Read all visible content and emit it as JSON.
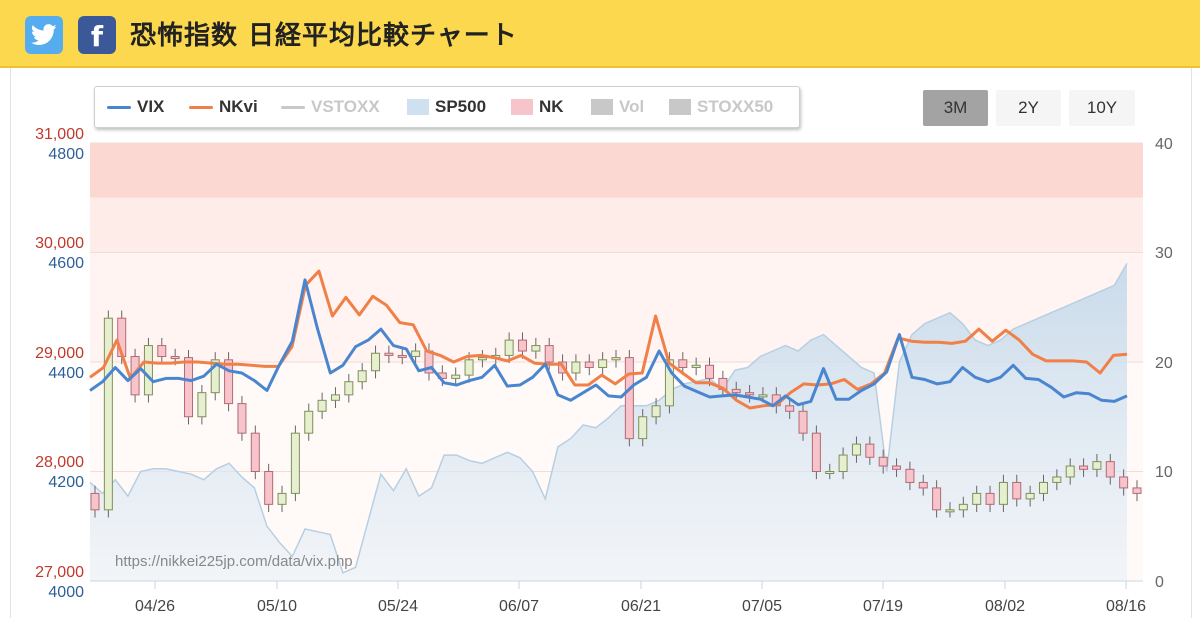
{
  "header": {
    "title": "恐怖指数 日経平均比較チャート",
    "twitter_icon": "twitter-icon",
    "facebook_icon": "facebook-icon",
    "facebook_glyph": "f"
  },
  "legend": [
    {
      "label": "VIX",
      "color": "#4a86cf",
      "symbol": "line",
      "active": true
    },
    {
      "label": "NKvi",
      "color": "#f07f48",
      "symbol": "line",
      "active": true
    },
    {
      "label": "VSTOXX",
      "color": "#c8c8c8",
      "symbol": "line",
      "active": false
    },
    {
      "label": "SP500",
      "color": "#cfe1f0",
      "symbol": "box",
      "active": true
    },
    {
      "label": "NK",
      "color": "#f7c4cb",
      "symbol": "box",
      "active": true
    },
    {
      "label": "Vol",
      "color": "#c8c8c8",
      "symbol": "box",
      "active": false
    },
    {
      "label": "STOXX50",
      "color": "#c8c8c8",
      "symbol": "box",
      "active": false
    }
  ],
  "range_buttons": [
    {
      "label": "3M",
      "active": true
    },
    {
      "label": "2Y",
      "active": false
    },
    {
      "label": "10Y",
      "active": false
    }
  ],
  "chart_data": {
    "type": "line",
    "x_ticks": [
      "04/26",
      "05/10",
      "05/24",
      "06/07",
      "06/21",
      "07/05",
      "07/19",
      "08/02",
      "08/16"
    ],
    "axes": {
      "left_nk": {
        "ticks": [
          "31,000",
          "30,000",
          "29,000",
          "28,000",
          "27,000"
        ],
        "range": [
          27000,
          31000
        ],
        "color": "#c0392b"
      },
      "left_sp": {
        "ticks": [
          "4800",
          "4600",
          "4400",
          "4200",
          "4000"
        ],
        "range": [
          4000,
          4800
        ],
        "color": "#2e5f9a"
      },
      "right_vix": {
        "ticks": [
          "40",
          "30",
          "20",
          "10",
          "0"
        ],
        "range": [
          0,
          40
        ]
      }
    },
    "bands": [
      {
        "from": 35,
        "to": 40,
        "color": "#fbd9d2"
      },
      {
        "from": 30,
        "to": 35,
        "color": "#fdece8"
      },
      {
        "from": 20,
        "to": 30,
        "color": "#fff4f1"
      },
      {
        "from": 0,
        "to": 20,
        "color": "#fffaf8"
      }
    ],
    "series": [
      {
        "name": "VIX",
        "color": "#4a86cf",
        "values": [
          17.4,
          18.2,
          19.5,
          18.3,
          19.4,
          18.2,
          18.5,
          18.5,
          18.3,
          18.7,
          19.8,
          19.2,
          19.0,
          18.3,
          17.4,
          19.8,
          21.9,
          27.5,
          23.0,
          19.0,
          19.7,
          21.4,
          22.0,
          23.0,
          21.5,
          21.2,
          19.2,
          19.5,
          18.1,
          17.9,
          18.3,
          18.6,
          19.7,
          17.8,
          17.9,
          18.6,
          19.8,
          17.0,
          16.5,
          17.2,
          17.9,
          16.9,
          16.8,
          17.9,
          18.6,
          21.0,
          19.0,
          17.8,
          17.3,
          16.8,
          16.9,
          17.0,
          16.8,
          16.6,
          16.0,
          16.9,
          16.1,
          16.4,
          19.4,
          16.6,
          16.6,
          17.4,
          18.0,
          19.1,
          22.5,
          18.6,
          18.4,
          18.0,
          18.2,
          19.5,
          18.6,
          18.2,
          18.6,
          19.7,
          18.5,
          18.4,
          17.7,
          16.8,
          17.2,
          17.1,
          16.5,
          16.4,
          16.9
        ]
      },
      {
        "name": "NKvi",
        "color": "#f07f48",
        "values": [
          18.6,
          19.5,
          22.0,
          18.5,
          20.0,
          19.9,
          19.9,
          20.0,
          20.0,
          19.9,
          19.8,
          19.8,
          19.7,
          19.6,
          19.6,
          21.4,
          27.0,
          28.3,
          24.2,
          25.9,
          24.3,
          26.0,
          25.2,
          23.6,
          23.4,
          21.0,
          20.6,
          20.0,
          20.5,
          20.6,
          20.4,
          20.1,
          20.6,
          19.9,
          19.8,
          19.8,
          17.9,
          17.9,
          18.8,
          18.0,
          18.9,
          19.0,
          24.2,
          19.9,
          19.0,
          18.1,
          18.1,
          17.6,
          16.5,
          15.8,
          16.0,
          16.1,
          17.2,
          18.0,
          17.9,
          18.0,
          18.4,
          17.5,
          18.0,
          19.0,
          22.2,
          21.9,
          21.8,
          21.8,
          21.7,
          21.9,
          23.0,
          21.9,
          22.9,
          22.0,
          20.7,
          20.1,
          20.1,
          20.1,
          20.0,
          19.0,
          20.6,
          20.7
        ]
      },
      {
        "name": "SP500",
        "color": "#cfe1f0",
        "values": [
          4180,
          4160,
          4185,
          4155,
          4200,
          4205,
          4205,
          4200,
          4195,
          4185,
          4205,
          4215,
          4190,
          4170,
          4100,
          4070,
          4045,
          4095,
          4090,
          4085,
          4015,
          4025,
          4110,
          4195,
          4165,
          4205,
          4155,
          4170,
          4230,
          4230,
          4220,
          4215,
          4225,
          4235,
          4225,
          4200,
          4150,
          4245,
          4260,
          4285,
          4280,
          4298,
          4320,
          4320,
          4320,
          4330,
          4350,
          4360,
          4365,
          4370,
          4350,
          4385,
          4390,
          4410,
          4420,
          4430,
          4420,
          4440,
          4450,
          4430,
          4410,
          4390,
          4380,
          4200,
          4400,
          4450,
          4470,
          4480,
          4490,
          4470,
          4440,
          4430,
          4440,
          4460,
          4470,
          4480,
          4490,
          4500,
          4510,
          4520,
          4530,
          4540,
          4580
        ]
      },
      {
        "name": "NK",
        "type": "candlestick",
        "color_up": "#e6efcf",
        "color_down": "#f7c4cb",
        "values": [
          27650,
          29400,
          29050,
          28700,
          29150,
          29050,
          29040,
          28500,
          28720,
          29020,
          28620,
          28350,
          28000,
          27700,
          27800,
          28350,
          28550,
          28650,
          28700,
          28820,
          28920,
          29080,
          29060,
          29050,
          29100,
          28900,
          28850,
          28880,
          29020,
          29040,
          29060,
          29200,
          29100,
          29150,
          29000,
          28900,
          29000,
          28950,
          29020,
          29040,
          28300,
          28500,
          28600,
          29020,
          28950,
          28970,
          28850,
          28750,
          28720,
          28700,
          28700,
          28600,
          28550,
          28350,
          28000,
          28000,
          28150,
          28250,
          28130,
          28050,
          28020,
          27900,
          27850,
          27650,
          27650,
          27700,
          27800,
          27700,
          27900,
          27750,
          27800,
          27900,
          27950,
          28050,
          28020,
          28090,
          27950,
          27850,
          27800
        ]
      }
    ],
    "credit": "https://nikkei225jp.com/data/vix.php"
  }
}
